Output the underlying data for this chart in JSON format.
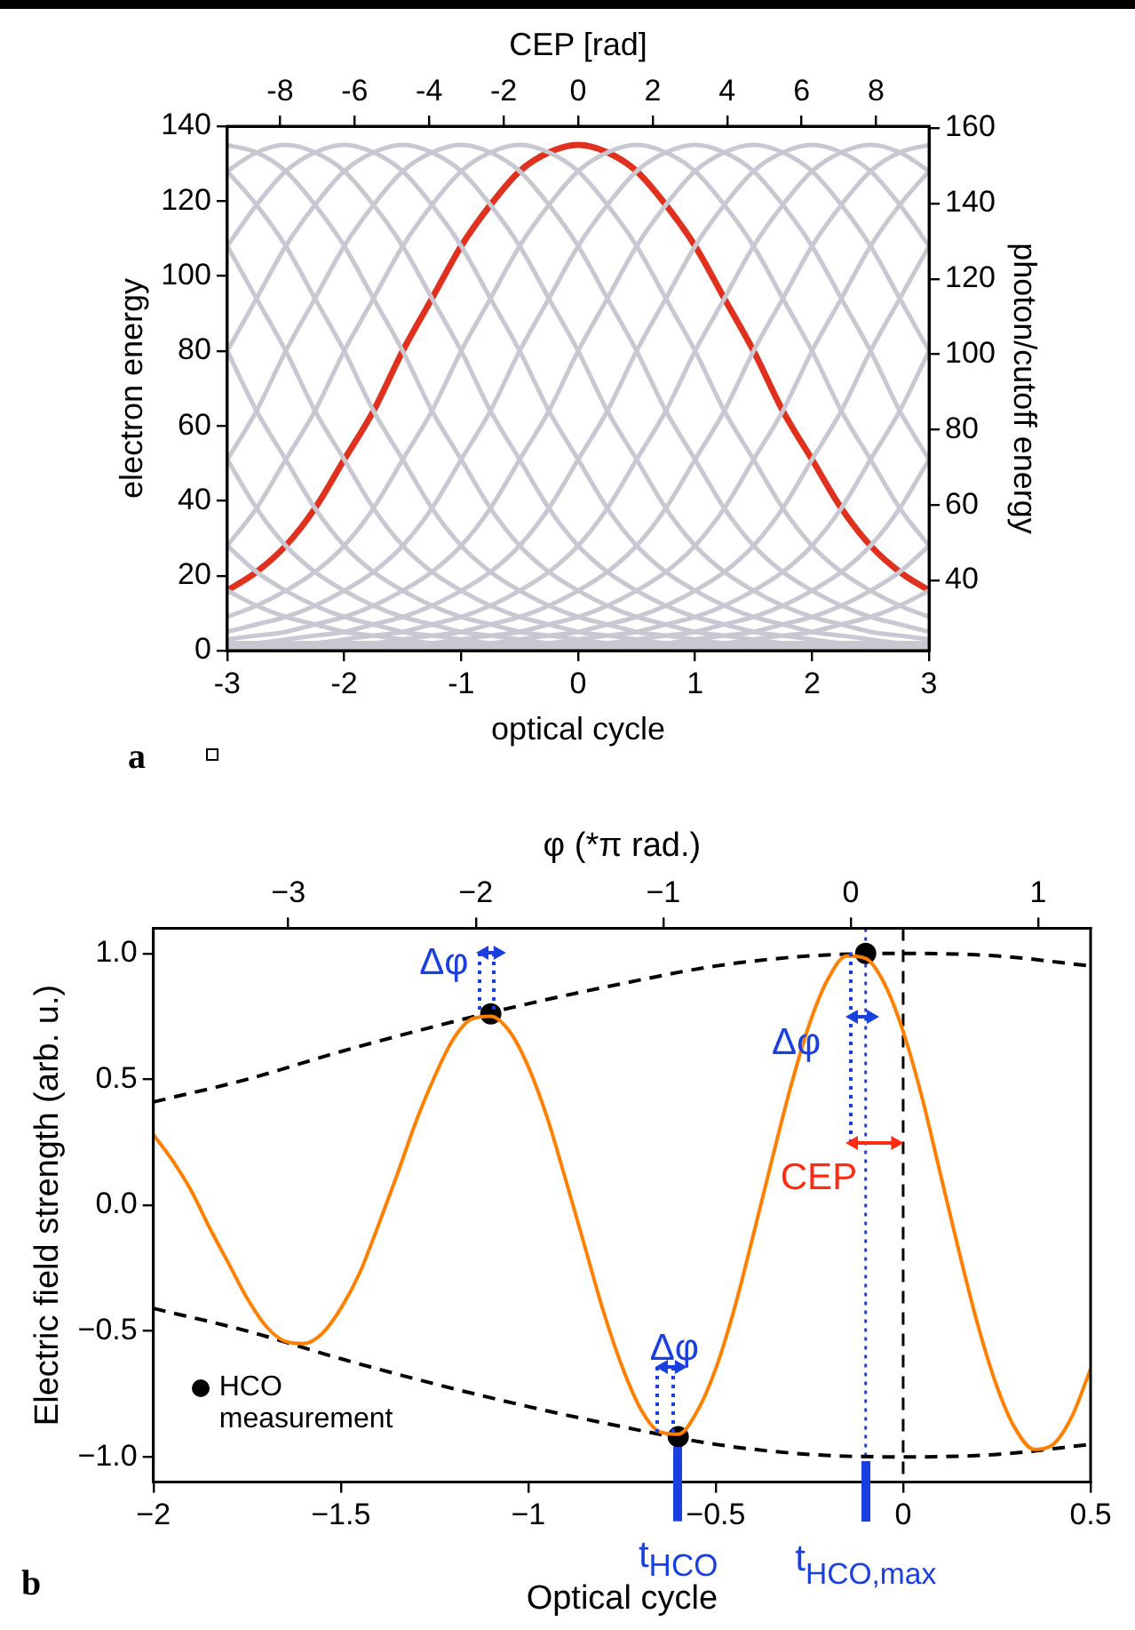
{
  "chart_data": [
    {
      "type": "line",
      "xlabel": "optical cycle",
      "ylabel": "electron energy",
      "y2label": "photon/cutoff energy",
      "x2label": "CEP [rad]",
      "marker": "none",
      "annotations": [
        "a"
      ],
      "x": [
        -3,
        -2.75,
        -2.5,
        -2.25,
        -2,
        -1.75,
        -1.5,
        -1.25,
        -1,
        -0.75,
        -0.5,
        -0.25,
        0,
        0.25,
        0.5,
        0.75,
        1,
        1.25,
        1.5,
        1.75,
        2,
        2.25,
        2.5,
        2.75,
        3
      ],
      "xlim": [
        -3,
        3
      ],
      "xticks": [
        -3,
        -2,
        -1,
        0,
        1,
        2,
        3
      ],
      "x2lim": [
        -9.42,
        9.42
      ],
      "x2ticks": [
        -8,
        -6,
        -4,
        -2,
        0,
        2,
        4,
        6,
        8
      ],
      "ylim": [
        0,
        140
      ],
      "yticks": [
        0,
        20,
        40,
        60,
        80,
        100,
        120,
        140
      ],
      "y2lim": [
        21.4,
        160.5
      ],
      "y2ticks": [
        40,
        60,
        80,
        100,
        120,
        140,
        160
      ],
      "series": [
        {
          "color": "#c8c8d2",
          "values": [
            16,
            12,
            9,
            7,
            5,
            4,
            3,
            2,
            2,
            1,
            1,
            1,
            0,
            0,
            0,
            0,
            0,
            0,
            0,
            0,
            0,
            0,
            0,
            0,
            0
          ]
        },
        {
          "color": "#c8c8d2",
          "values": [
            28,
            21,
            16,
            12,
            9,
            7,
            5,
            4,
            3,
            2,
            2,
            1,
            1,
            1,
            0,
            0,
            0,
            0,
            0,
            0,
            0,
            0,
            0,
            0,
            0
          ]
        },
        {
          "color": "#c8c8d2",
          "values": [
            51,
            38,
            28,
            21,
            16,
            12,
            9,
            7,
            5,
            4,
            3,
            2,
            2,
            1,
            1,
            1,
            0,
            0,
            0,
            0,
            0,
            0,
            0,
            0,
            0
          ]
        },
        {
          "color": "#c8c8d2",
          "values": [
            80,
            64,
            51,
            38,
            28,
            21,
            16,
            12,
            9,
            7,
            5,
            4,
            3,
            2,
            2,
            1,
            1,
            1,
            0,
            0,
            0,
            0,
            0,
            0,
            0
          ]
        },
        {
          "color": "#c8c8d2",
          "values": [
            108,
            94,
            80,
            64,
            51,
            38,
            28,
            21,
            16,
            12,
            9,
            7,
            5,
            4,
            3,
            2,
            2,
            1,
            1,
            1,
            0,
            0,
            0,
            0,
            0
          ]
        },
        {
          "color": "#c8c8d2",
          "values": [
            128,
            119,
            108,
            94,
            80,
            64,
            51,
            38,
            28,
            21,
            16,
            12,
            9,
            7,
            5,
            4,
            3,
            2,
            2,
            1,
            1,
            1,
            0,
            0,
            0
          ]
        },
        {
          "color": "#c8c8d2",
          "values": [
            135,
            133,
            128,
            119,
            108,
            94,
            80,
            64,
            51,
            38,
            28,
            21,
            16,
            12,
            9,
            7,
            5,
            4,
            3,
            2,
            2,
            1,
            1,
            1,
            0
          ]
        },
        {
          "color": "#c8c8d2",
          "values": [
            128,
            133,
            135,
            133,
            128,
            119,
            108,
            94,
            80,
            64,
            51,
            38,
            28,
            21,
            16,
            12,
            9,
            7,
            5,
            4,
            3,
            2,
            2,
            1,
            1
          ]
        },
        {
          "color": "#c8c8d2",
          "values": [
            108,
            119,
            128,
            133,
            135,
            133,
            128,
            119,
            108,
            94,
            80,
            64,
            51,
            38,
            28,
            21,
            16,
            12,
            9,
            7,
            5,
            4,
            3,
            2,
            2
          ]
        },
        {
          "color": "#c8c8d2",
          "values": [
            80,
            94,
            108,
            119,
            128,
            133,
            135,
            133,
            128,
            119,
            108,
            94,
            80,
            64,
            51,
            38,
            28,
            21,
            16,
            12,
            9,
            7,
            5,
            4,
            3
          ]
        },
        {
          "color": "#c8c8d2",
          "values": [
            51,
            64,
            80,
            94,
            108,
            119,
            128,
            133,
            135,
            133,
            128,
            119,
            108,
            94,
            80,
            64,
            51,
            38,
            28,
            21,
            16,
            12,
            9,
            7,
            5
          ]
        },
        {
          "color": "#c8c8d2",
          "values": [
            28,
            38,
            51,
            64,
            80,
            94,
            108,
            119,
            128,
            133,
            135,
            133,
            128,
            119,
            108,
            94,
            80,
            64,
            51,
            38,
            28,
            21,
            16,
            12,
            9
          ]
        },
        {
          "color": "#c8c8d2",
          "values": [
            9,
            12,
            16,
            21,
            28,
            38,
            51,
            64,
            80,
            94,
            108,
            119,
            128,
            133,
            135,
            133,
            128,
            119,
            108,
            94,
            80,
            64,
            51,
            38,
            28
          ]
        },
        {
          "color": "#c8c8d2",
          "values": [
            5,
            7,
            9,
            12,
            16,
            21,
            28,
            38,
            51,
            64,
            80,
            94,
            108,
            119,
            128,
            133,
            135,
            133,
            128,
            119,
            108,
            94,
            80,
            64,
            51
          ]
        },
        {
          "color": "#c8c8d2",
          "values": [
            3,
            4,
            5,
            7,
            9,
            12,
            16,
            21,
            28,
            38,
            51,
            64,
            80,
            94,
            108,
            119,
            128,
            133,
            135,
            133,
            128,
            119,
            108,
            94,
            80
          ]
        },
        {
          "color": "#c8c8d2",
          "values": [
            2,
            2,
            3,
            4,
            5,
            7,
            9,
            12,
            16,
            21,
            28,
            38,
            51,
            64,
            80,
            94,
            108,
            119,
            128,
            133,
            135,
            133,
            128,
            119,
            108
          ]
        },
        {
          "color": "#c8c8d2",
          "values": [
            1,
            1,
            2,
            2,
            3,
            4,
            5,
            7,
            9,
            12,
            16,
            21,
            28,
            38,
            51,
            64,
            80,
            94,
            108,
            119,
            128,
            133,
            135,
            133,
            128
          ]
        },
        {
          "color": "#c8c8d2",
          "values": [
            0,
            1,
            1,
            1,
            2,
            2,
            3,
            4,
            5,
            7,
            9,
            12,
            16,
            21,
            28,
            38,
            51,
            64,
            80,
            94,
            108,
            119,
            128,
            133,
            135
          ]
        },
        {
          "color": "#c8c8d2",
          "values": [
            0,
            0,
            0,
            1,
            1,
            1,
            2,
            2,
            3,
            4,
            5,
            7,
            9,
            12,
            16,
            21,
            28,
            38,
            51,
            64,
            80,
            94,
            108,
            119,
            128
          ]
        },
        {
          "color": "#c8c8d2",
          "values": [
            0,
            0,
            0,
            0,
            0,
            1,
            1,
            1,
            2,
            2,
            3,
            4,
            5,
            7,
            9,
            12,
            16,
            21,
            28,
            38,
            51,
            64,
            80,
            94,
            108
          ]
        },
        {
          "color": "#c8c8d2",
          "values": [
            0,
            0,
            0,
            0,
            0,
            0,
            0,
            1,
            1,
            1,
            2,
            2,
            3,
            4,
            5,
            7,
            9,
            12,
            16,
            21,
            28,
            38,
            51,
            64,
            80
          ]
        },
        {
          "color": "#c8c8d2",
          "values": [
            0,
            0,
            0,
            0,
            0,
            0,
            0,
            0,
            0,
            1,
            1,
            1,
            2,
            2,
            3,
            4,
            5,
            7,
            9,
            12,
            16,
            21,
            28,
            38,
            51
          ]
        },
        {
          "color": "#c8c8d2",
          "values": [
            0,
            0,
            0,
            0,
            0,
            0,
            0,
            0,
            0,
            0,
            0,
            1,
            1,
            1,
            2,
            2,
            3,
            4,
            5,
            7,
            9,
            12,
            16,
            21,
            28
          ]
        },
        {
          "color": "#c8c8d2",
          "values": [
            0,
            0,
            0,
            0,
            0,
            0,
            0,
            0,
            0,
            0,
            0,
            0,
            0,
            1,
            1,
            1,
            2,
            2,
            3,
            4,
            5,
            7,
            9,
            12,
            16
          ]
        },
        {
          "color": "#e0301e",
          "values": [
            16,
            21,
            28,
            38,
            51,
            64,
            80,
            94,
            108,
            119,
            128,
            133,
            135,
            133,
            128,
            119,
            108,
            94,
            80,
            64,
            51,
            38,
            28,
            21,
            16
          ]
        }
      ]
    },
    {
      "type": "line",
      "xlabel": "Optical cycle",
      "ylabel": "Electric field strength (arb. u.)",
      "x2label": "φ (*π rad.)",
      "marker": "none",
      "legend": "bottom left",
      "xlim": [
        -2,
        0.5
      ],
      "xticks": [
        {
          "value": -2,
          "label": "−2"
        },
        {
          "value": -1.5,
          "label": "−1.5"
        },
        {
          "value": -1,
          "label": "−1"
        },
        {
          "value": -0.5,
          "label": "−0.5"
        },
        0,
        0.5
      ],
      "x2lim": [
        -3.72,
        1.28
      ],
      "x2ticks": [
        {
          "value": -3,
          "label": "−3"
        },
        {
          "value": -2,
          "label": "−2"
        },
        {
          "value": -1,
          "label": "−1"
        },
        0,
        1
      ],
      "ylim": [
        -1.1,
        1.1
      ],
      "yticks": [
        {
          "value": -1,
          "label": "−1.0"
        },
        {
          "value": -0.5,
          "label": "−0.5"
        },
        {
          "value": 0,
          "label": "0.0"
        },
        {
          "value": 0.5,
          "label": "0.5"
        },
        {
          "value": 1,
          "label": "1.0"
        }
      ],
      "ref_lines": [
        {
          "axis": "x",
          "value": 0,
          "color": "#000000",
          "line_style": "dashed"
        },
        {
          "axis": "x",
          "value": -0.1,
          "color": "#1a3fe0",
          "line_style": "dotted",
          "label": "t$_{HCO,max}$"
        }
      ],
      "annotations": [
        {
          "text": "Δφ",
          "x": -1.1,
          "y": 0.76
        },
        {
          "text": "Δφ",
          "x": -0.1,
          "y": 1
        },
        {
          "text": "Δφ",
          "x": -0.6,
          "y": -0.92
        },
        {
          "text": "CEP",
          "x": 0,
          "y": 0.25
        },
        {
          "text": "t$_{HCO}$",
          "x": -0.6,
          "y": -0.92
        },
        "b"
      ],
      "series": [
        {
          "color": "#ff8000",
          "x": [
            -2,
            -1.95,
            -1.9,
            -1.85,
            -1.8,
            -1.75,
            -1.7,
            -1.65,
            -1.6,
            -1.55,
            -1.5,
            -1.45,
            -1.4,
            -1.35,
            -1.3,
            -1.25,
            -1.2,
            -1.15,
            -1.1,
            -1.05,
            -1,
            -0.95,
            -0.9,
            -0.85,
            -0.8,
            -0.75,
            -0.7,
            -0.65,
            -0.6,
            -0.55,
            -0.5,
            -0.45,
            -0.4,
            -0.35,
            -0.3,
            -0.25,
            -0.2,
            -0.15,
            -0.1,
            -0.05,
            0,
            0.05,
            0.1,
            0.15,
            0.2,
            0.25,
            0.3,
            0.35,
            0.4,
            0.45,
            0.5
          ],
          "values": [
            0.28,
            0.18,
            0.06,
            -0.09,
            -0.23,
            -0.37,
            -0.48,
            -0.54,
            -0.55,
            -0.51,
            -0.41,
            -0.27,
            -0.08,
            0.12,
            0.33,
            0.51,
            0.66,
            0.74,
            0.75,
            0.69,
            0.55,
            0.35,
            0.1,
            -0.16,
            -0.42,
            -0.64,
            -0.81,
            -0.9,
            -0.91,
            -0.82,
            -0.65,
            -0.41,
            -0.12,
            0.18,
            0.47,
            0.72,
            0.9,
            0.99,
            0.98,
            0.88,
            0.69,
            0.43,
            0.12,
            -0.19,
            -0.48,
            -0.72,
            -0.89,
            -0.97,
            -0.95,
            -0.84,
            -0.65
          ]
        },
        {
          "color": "#000000",
          "line_style": "dashed",
          "x": [
            -2,
            -1.75,
            -1.5,
            -1.25,
            -1,
            -0.75,
            -0.5,
            -0.25,
            0,
            0.25,
            0.5
          ],
          "values": [
            0.41,
            0.5,
            0.61,
            0.71,
            0.8,
            0.88,
            0.95,
            0.99,
            1,
            0.99,
            0.95
          ]
        },
        {
          "color": "#000000",
          "line_style": "dashed",
          "x": [
            -2,
            -1.75,
            -1.5,
            -1.25,
            -1,
            -0.75,
            -0.5,
            -0.25,
            0,
            0.25,
            0.5
          ],
          "values": [
            -0.41,
            -0.5,
            -0.61,
            -0.71,
            -0.8,
            -0.88,
            -0.95,
            -0.99,
            -1,
            -0.99,
            -0.95
          ]
        },
        {
          "type": "scatter",
          "name": "HCO measurement",
          "color": "#000000",
          "marker": "circle",
          "x": [
            -1.1,
            -0.6,
            -0.1
          ],
          "values": [
            0.76,
            -0.92,
            1
          ]
        }
      ]
    }
  ]
}
